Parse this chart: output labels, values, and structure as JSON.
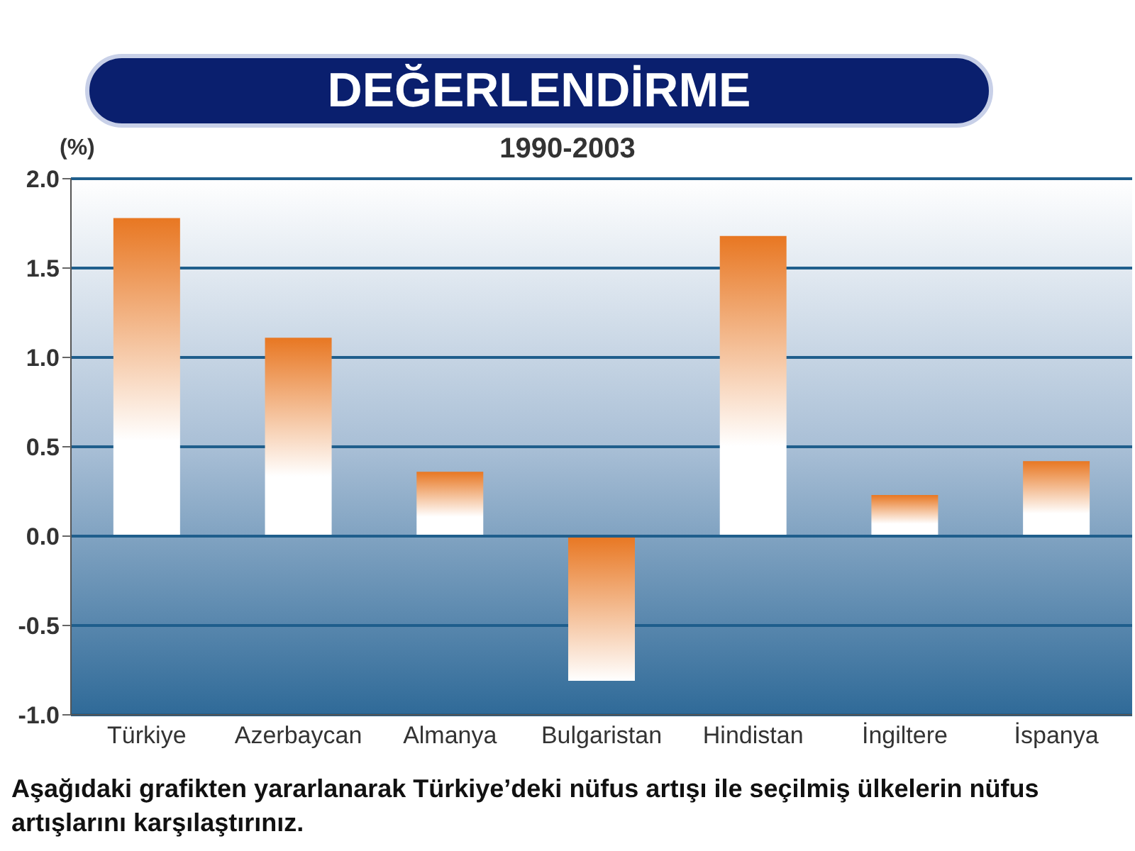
{
  "chart_data": {
    "type": "bar",
    "title": "DEĞERLENDİRME",
    "subtitle": "1990-2003",
    "ylabel": "(%)",
    "categories": [
      "Türkiye",
      "Azerbaycan",
      "Almanya",
      "Bulgaristan",
      "Hindistan",
      "İngiltere",
      "İspanya"
    ],
    "values": [
      1.78,
      1.11,
      0.36,
      -0.81,
      1.68,
      0.23,
      0.42
    ],
    "color": "#e87722",
    "ylim": [
      -1.0,
      2.0
    ],
    "yticks": [
      {
        "value": -1.0,
        "label": "-1.0"
      },
      {
        "value": -0.5,
        "label": "-0.5"
      },
      {
        "value": 0,
        "label": "0.0"
      },
      {
        "value": 0.5,
        "label": "0.5"
      },
      {
        "value": 1.0,
        "label": "1.0"
      },
      {
        "value": 1.5,
        "label": "1.5"
      },
      {
        "value": 2.0,
        "label": "2.0"
      }
    ],
    "grid": "y",
    "annotations": [
      "Aşağıdaki grafikten yararlanarak Türkiye’deki nüfus artışı ile seçilmiş ülkelerin nüfus artışlarını  karşılaştırınız."
    ]
  }
}
